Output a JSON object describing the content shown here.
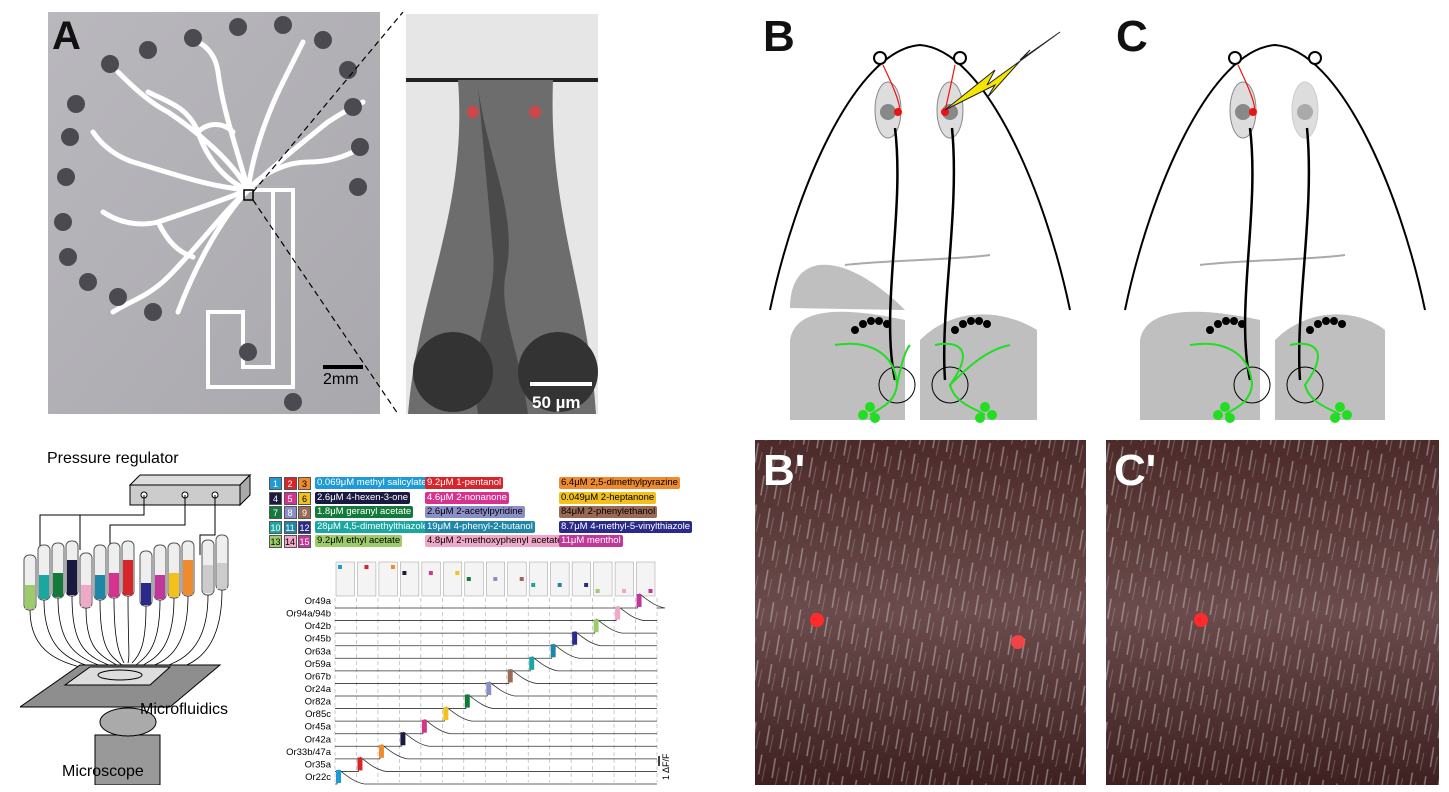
{
  "panels": {
    "A": {
      "label": "A",
      "scale_left": "2mm",
      "scale_right": "50 µm"
    },
    "B": {
      "label": "B"
    },
    "C": {
      "label": "C"
    },
    "Bp": {
      "label": "B'"
    },
    "Cp": {
      "label": "C'"
    }
  },
  "setup": {
    "pressure_regulator": "Pressure regulator",
    "microfluidics": "Microfluidics",
    "microscope": "Microscope"
  },
  "legend": [
    {
      "num": "1",
      "text": "0.069μM methyl salicylate",
      "color": "#1f9ad6"
    },
    {
      "num": "2",
      "text": "9.2μM 1-pentanol",
      "color": "#d7262b"
    },
    {
      "num": "3",
      "text": "6.4μM 2,5-dimethylpyrazine",
      "color": "#ef8a2f"
    },
    {
      "num": "4",
      "text": "2.6μM 4-hexen-3-one",
      "color": "#1a1a40"
    },
    {
      "num": "5",
      "text": "4.6μM 2-nonanone",
      "color": "#d6338f"
    },
    {
      "num": "6",
      "text": "0.049μM 2-heptanone",
      "color": "#f2c11b"
    },
    {
      "num": "7",
      "text": "1.8μM geranyl acetate",
      "color": "#137a3c"
    },
    {
      "num": "8",
      "text": "2.6μM 2-acetylpyridine",
      "color": "#8c8ec8"
    },
    {
      "num": "9",
      "text": "84μM 2-phenylethanol",
      "color": "#9a6a55"
    },
    {
      "num": "10",
      "text": "28μM 4,5-dimethylthiazole",
      "color": "#1aa7a0"
    },
    {
      "num": "11",
      "text": "19μM 4-phenyl-2-butanol",
      "color": "#1f86a8"
    },
    {
      "num": "12",
      "text": "8.7μM 4-methyl-5-vinylthiazole",
      "color": "#2a2a8a"
    },
    {
      "num": "13",
      "text": "9.2μM ethyl acetate",
      "color": "#9ccc6a"
    },
    {
      "num": "14",
      "text": "4.8μM 2-methoxyphenyl acetate",
      "color": "#f0a8c8"
    },
    {
      "num": "15",
      "text": "11μM menthol",
      "color": "#c2379a"
    }
  ],
  "receptors": [
    "Or49a",
    "Or94a/94b",
    "Or42b",
    "Or45b",
    "Or63a",
    "Or59a",
    "Or67b",
    "Or24a",
    "Or82a",
    "Or85c",
    "Or45a",
    "Or42a",
    "Or33b/47a",
    "Or35a",
    "Or22c"
  ],
  "scale_dff": "1 ΔF/F"
}
